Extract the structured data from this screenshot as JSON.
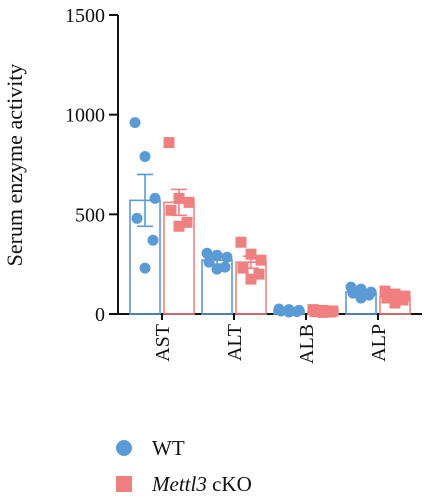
{
  "chart_data": {
    "type": "bar",
    "ylabel": "Serum enzyme activity",
    "xlabel": "",
    "ylim": [
      0,
      1500
    ],
    "yticks": [
      0,
      500,
      1000,
      1500
    ],
    "categories": [
      "AST",
      "ALT",
      "ALB",
      "ALP"
    ],
    "series": [
      {
        "name": "WT",
        "color": "#5b9bd5",
        "marker": "circle",
        "values": [
          570,
          270,
          20,
          110
        ],
        "error": [
          130,
          20,
          3,
          10
        ],
        "points": [
          [
            960,
            790,
            580,
            480,
            370,
            230
          ],
          [
            305,
            295,
            285,
            260,
            235,
            225
          ],
          [
            25,
            22,
            18,
            15,
            12,
            10
          ],
          [
            135,
            125,
            110,
            105,
            95,
            80
          ]
        ]
      },
      {
        "name_italic": "Mettl3",
        "name_rest": " cKO",
        "color": "#f08080",
        "marker": "square",
        "values": [
          560,
          260,
          15,
          85
        ],
        "error": [
          65,
          30,
          3,
          12
        ],
        "points": [
          [
            860,
            580,
            560,
            520,
            460,
            440
          ],
          [
            360,
            300,
            270,
            230,
            200,
            175
          ],
          [
            22,
            18,
            15,
            12,
            10,
            8
          ],
          [
            115,
            100,
            90,
            80,
            70,
            55
          ]
        ]
      }
    ]
  }
}
